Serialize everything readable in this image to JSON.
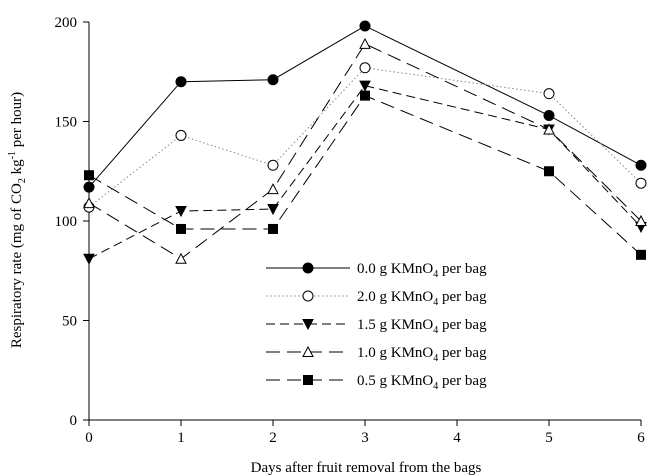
{
  "chart_data": {
    "type": "line",
    "title": "",
    "xlabel": "Days after fruit removal from the bags",
    "ylabel": {
      "pre": "Respiratory rate (mg of CO",
      "sub": "2",
      "mid1": " kg",
      "sup": "-1",
      "post": " per hour)"
    },
    "xlim": [
      0,
      6
    ],
    "ylim": [
      0,
      200
    ],
    "x_ticks": [
      0,
      1,
      2,
      3,
      4,
      5,
      6
    ],
    "y_ticks": [
      0,
      50,
      100,
      150,
      200
    ],
    "grid": false,
    "legend_position": "bottom-center",
    "series": [
      {
        "name": {
          "pre": "0.0 g KMnO",
          "sub": "4",
          "post": " per bag"
        },
        "marker": "filled-circle",
        "dash": "solid",
        "x": [
          0,
          1,
          2,
          3,
          5,
          6
        ],
        "values": [
          117,
          170,
          171,
          198,
          153,
          128
        ]
      },
      {
        "name": {
          "pre": "2.0 g KMnO",
          "sub": "4",
          "post": " per bag"
        },
        "marker": "open-circle",
        "dash": "dotted",
        "x": [
          0,
          1,
          2,
          3,
          5,
          6
        ],
        "values": [
          107,
          143,
          128,
          177,
          164,
          119
        ]
      },
      {
        "name": {
          "pre": "1.5 g KMnO",
          "sub": "4",
          "post": " per bag"
        },
        "marker": "filled-triangle-down",
        "dash": "short-dash",
        "x": [
          0,
          1,
          2,
          3,
          5,
          6
        ],
        "values": [
          81,
          105,
          106,
          168,
          146,
          97
        ]
      },
      {
        "name": {
          "pre": "1.0 g KMnO",
          "sub": "4",
          "post": " per bag"
        },
        "marker": "open-triangle-up",
        "dash": "long-dash",
        "x": [
          0,
          1,
          2,
          3,
          5,
          6
        ],
        "values": [
          109,
          81,
          116,
          189,
          146,
          100
        ]
      },
      {
        "name": {
          "pre": "0.5 g KMnO",
          "sub": "4",
          "post": " per bag"
        },
        "marker": "filled-square",
        "dash": "long-dash",
        "x": [
          0,
          1,
          2,
          3,
          5,
          6
        ],
        "values": [
          123,
          96,
          96,
          163,
          125,
          83
        ]
      }
    ]
  }
}
